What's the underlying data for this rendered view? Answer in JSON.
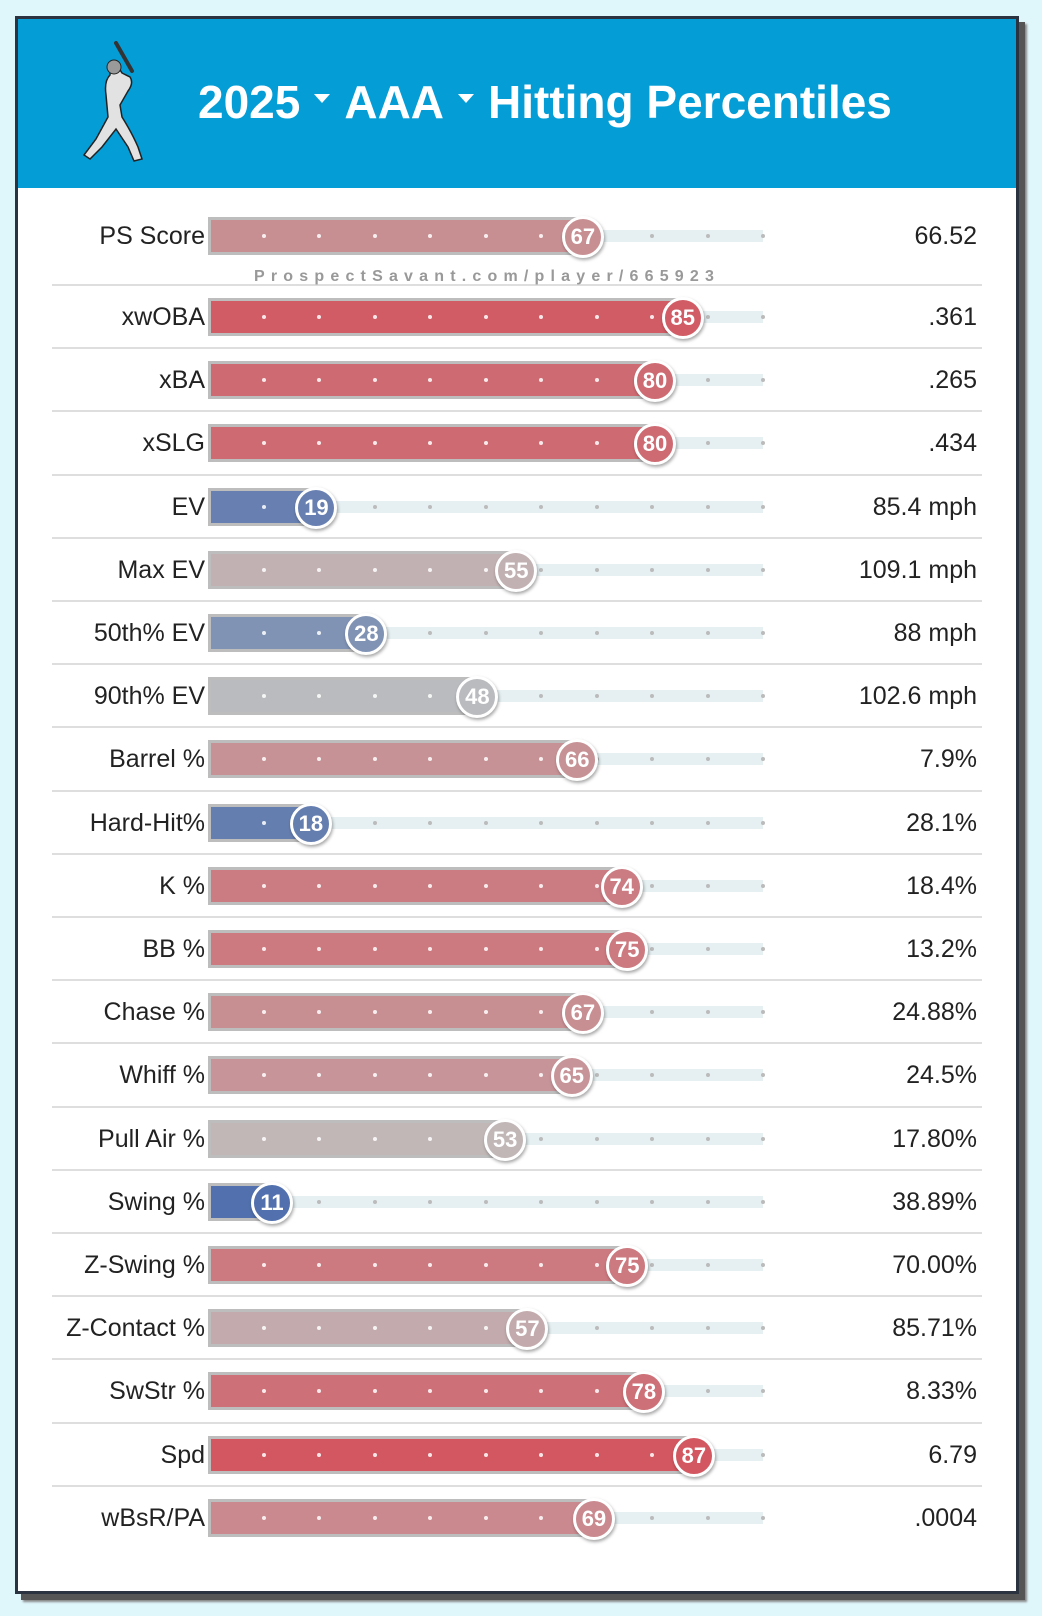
{
  "header": {
    "season": "2025",
    "level": "AAA",
    "title": "Hitting Percentiles",
    "icon": "batter-icon"
  },
  "watermark": "ProspectSavant.com/player/665923",
  "colors": {
    "header": "#059dd6",
    "low": "#325aa8",
    "mid": "#bfbfbf",
    "high": "#d8323f"
  },
  "chart_data": {
    "type": "bar",
    "orientation": "horizontal",
    "xlim": [
      0,
      100
    ],
    "rows": [
      {
        "label": "PS Score",
        "percentile": 67,
        "value": "66.52"
      },
      {
        "label": "xwOBA",
        "percentile": 85,
        "value": ".361"
      },
      {
        "label": "xBA",
        "percentile": 80,
        "value": ".265"
      },
      {
        "label": "xSLG",
        "percentile": 80,
        "value": ".434"
      },
      {
        "label": "EV",
        "percentile": 19,
        "value": "85.4 mph"
      },
      {
        "label": "Max EV",
        "percentile": 55,
        "value": "109.1 mph"
      },
      {
        "label": "50th% EV",
        "percentile": 28,
        "value": "88 mph"
      },
      {
        "label": "90th% EV",
        "percentile": 48,
        "value": "102.6 mph"
      },
      {
        "label": "Barrel %",
        "percentile": 66,
        "value": "7.9%"
      },
      {
        "label": "Hard-Hit%",
        "percentile": 18,
        "value": "28.1%"
      },
      {
        "label": "K %",
        "percentile": 74,
        "value": "18.4%"
      },
      {
        "label": "BB %",
        "percentile": 75,
        "value": "13.2%"
      },
      {
        "label": "Chase %",
        "percentile": 67,
        "value": "24.88%"
      },
      {
        "label": "Whiff %",
        "percentile": 65,
        "value": "24.5%"
      },
      {
        "label": "Pull Air %",
        "percentile": 53,
        "value": "17.80%"
      },
      {
        "label": "Swing %",
        "percentile": 11,
        "value": "38.89%"
      },
      {
        "label": "Z-Swing %",
        "percentile": 75,
        "value": "70.00%"
      },
      {
        "label": "Z-Contact %",
        "percentile": 57,
        "value": "85.71%"
      },
      {
        "label": "SwStr %",
        "percentile": 78,
        "value": "8.33%"
      },
      {
        "label": "Spd",
        "percentile": 87,
        "value": "6.79"
      },
      {
        "label": "wBsR/PA",
        "percentile": 69,
        "value": ".0004"
      }
    ]
  }
}
